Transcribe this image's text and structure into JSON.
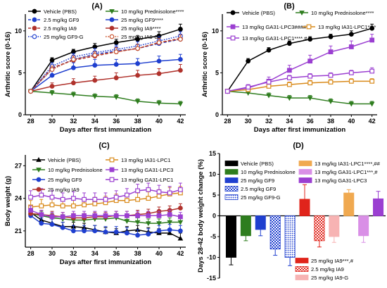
{
  "chart_data": [
    {
      "panel": "(A)",
      "type": "line",
      "xlabel": "Days after first immunization",
      "ylabel": "Arthritic score (0-16)",
      "xlim": [
        27.5,
        42.5
      ],
      "ylim": [
        0,
        12
      ],
      "xticks": [
        28,
        30,
        32,
        34,
        36,
        38,
        40,
        42
      ],
      "yticks": [
        0,
        5,
        10
      ],
      "grid": false,
      "legend_position": "top",
      "x": [
        28,
        30,
        32,
        34,
        36,
        38,
        40,
        42
      ],
      "series": [
        {
          "name": "Vehicle (PBS)",
          "color": "#000000",
          "marker": "circle",
          "fill": "filled",
          "dash": "solid",
          "values": [
            2.8,
            6.5,
            7.5,
            8.1,
            8.6,
            9.0,
            9.4,
            10.2
          ],
          "errors": [
            0.2,
            0.3,
            0.3,
            0.4,
            0.4,
            0.4,
            0.5,
            0.6
          ]
        },
        {
          "name": "2.5 mg/kg GF9",
          "color": "#1f3fcf",
          "marker": "circle",
          "fill": "filled",
          "dash": "dashed",
          "values": [
            2.8,
            5.5,
            6.6,
            7.2,
            7.6,
            7.9,
            8.5,
            9.0
          ],
          "errors": [
            0.2,
            0.4,
            0.4,
            0.4,
            0.5,
            0.5,
            0.5,
            0.5
          ]
        },
        {
          "name": "2.5 mg/kg IA9",
          "color": "#b0322c",
          "marker": "circle",
          "fill": "filled",
          "dash": "dashed",
          "values": [
            2.8,
            5.6,
            6.5,
            7.0,
            7.5,
            7.9,
            8.6,
            9.1
          ],
          "errors": [
            0.2,
            0.4,
            0.4,
            0.4,
            0.5,
            0.5,
            0.5,
            0.5
          ]
        },
        {
          "name": "25 mg/kg GF9-G",
          "color": "#1f3fcf",
          "marker": "circle",
          "fill": "open",
          "dash": "dotted",
          "values": [
            2.8,
            5.8,
            6.9,
            7.4,
            7.8,
            8.2,
            8.8,
            9.4
          ],
          "errors": [
            0.2,
            0.4,
            0.4,
            0.5,
            0.5,
            0.5,
            0.5,
            0.5
          ]
        },
        {
          "name": "10 mg/kg Prednisolone****",
          "color": "#2e7d1e",
          "marker": "triangle-down",
          "fill": "filled",
          "dash": "solid",
          "values": [
            2.8,
            2.6,
            2.4,
            2.2,
            2.1,
            1.6,
            1.4,
            1.3
          ],
          "errors": [
            0.2,
            0.3,
            0.3,
            0.3,
            0.3,
            0.3,
            0.3,
            0.3
          ]
        },
        {
          "name": "25 mg/kg GF9****",
          "color": "#1f3fcf",
          "marker": "circle",
          "fill": "filled",
          "dash": "solid",
          "values": [
            2.8,
            4.7,
            5.6,
            5.9,
            6.0,
            6.1,
            6.4,
            6.6
          ],
          "errors": [
            0.2,
            0.5,
            0.6,
            0.7,
            0.6,
            0.6,
            0.6,
            0.6
          ]
        },
        {
          "name": "25 mg/kg IA9****",
          "color": "#b0322c",
          "marker": "circle",
          "fill": "filled",
          "dash": "solid",
          "values": [
            2.8,
            3.4,
            3.8,
            4.1,
            4.4,
            4.7,
            4.9,
            5.3
          ],
          "errors": [
            0.2,
            0.4,
            0.5,
            0.5,
            0.6,
            0.6,
            0.6,
            0.7
          ]
        },
        {
          "name": "25 mg/kg IA9-G",
          "color": "#c9502a",
          "marker": "circle",
          "fill": "open",
          "dash": "dotted",
          "values": [
            2.8,
            5.4,
            6.6,
            7.1,
            7.5,
            7.9,
            8.6,
            9.0
          ],
          "errors": [
            0.2,
            0.4,
            0.4,
            0.4,
            0.5,
            0.5,
            0.5,
            0.5
          ]
        }
      ]
    },
    {
      "panel": "(B)",
      "type": "line",
      "xlabel": "Days after first immunization",
      "ylabel": "Arthritic score (0-16)",
      "xlim": [
        27.5,
        42.5
      ],
      "ylim": [
        0,
        12
      ],
      "xticks": [
        28,
        30,
        32,
        34,
        36,
        38,
        40,
        42
      ],
      "yticks": [
        0,
        5,
        10
      ],
      "grid": false,
      "legend_position": "top",
      "x": [
        28,
        30,
        32,
        34,
        36,
        38,
        40,
        42
      ],
      "series": [
        {
          "name": "Vehicle (PBS)",
          "color": "#000000",
          "marker": "circle",
          "fill": "filled",
          "dash": "solid",
          "values": [
            2.8,
            6.4,
            7.7,
            8.5,
            9.0,
            9.3,
            9.6,
            10.3
          ],
          "errors": [
            0.2,
            0.3,
            0.3,
            0.3,
            0.3,
            0.3,
            0.4,
            0.5
          ]
        },
        {
          "name": "10 mg/kg Prednisolone****",
          "color": "#2e7d1e",
          "marker": "triangle-down",
          "fill": "filled",
          "dash": "solid",
          "values": [
            2.8,
            2.6,
            2.3,
            2.0,
            2.0,
            1.6,
            1.3,
            1.3
          ],
          "errors": [
            0.2,
            0.3,
            0.3,
            0.3,
            0.3,
            0.3,
            0.3,
            0.3
          ]
        },
        {
          "name": "13 mg/kg GA31-LPC3####",
          "color": "#9b3fd1",
          "marker": "square",
          "fill": "filled",
          "dash": "solid",
          "values": [
            2.8,
            3.2,
            4.0,
            5.3,
            6.4,
            7.5,
            8.1,
            8.9
          ],
          "errors": [
            0.2,
            0.3,
            0.5,
            0.6,
            0.7,
            0.7,
            0.7,
            0.7
          ]
        },
        {
          "name": "13 mg/kg IA31-LPC1****",
          "color": "#d98a1a",
          "marker": "square",
          "fill": "open",
          "dash": "solid",
          "values": [
            2.8,
            3.0,
            3.4,
            3.6,
            3.8,
            3.9,
            4.0,
            4.0
          ],
          "errors": [
            0.2,
            0.3,
            0.3,
            0.3,
            0.3,
            0.3,
            0.3,
            0.3
          ]
        },
        {
          "name": "13 mg/kg GA31-LPC1****,#",
          "color": "#9b3fd1",
          "marker": "square",
          "fill": "open",
          "dash": "solid",
          "values": [
            2.8,
            3.3,
            3.9,
            4.4,
            4.6,
            4.7,
            5.0,
            5.2
          ],
          "errors": [
            0.2,
            0.3,
            0.3,
            0.3,
            0.3,
            0.3,
            0.3,
            0.4
          ]
        }
      ]
    },
    {
      "panel": "(C)",
      "type": "line",
      "xlabel": "Days after first immunization",
      "ylabel": "Body weight (g)",
      "xlim": [
        27.5,
        42.5
      ],
      "ylim": [
        19.5,
        28
      ],
      "xticks": [
        28,
        30,
        32,
        34,
        36,
        38,
        40,
        42
      ],
      "yticks": [
        21,
        24,
        27
      ],
      "grid": false,
      "legend_position": "top",
      "x": [
        28,
        29,
        30,
        31,
        32,
        33,
        34,
        35,
        36,
        37,
        38,
        39,
        40,
        41,
        42
      ],
      "series": [
        {
          "name": "Vehicle (PBS)",
          "color": "#000000",
          "marker": "triangle-up",
          "fill": "filled",
          "dash": "solid",
          "values": [
            22.7,
            22.0,
            21.7,
            21.4,
            21.4,
            21.3,
            21.1,
            20.9,
            20.8,
            21.0,
            21.1,
            20.9,
            20.8,
            20.8,
            20.3
          ],
          "errors": [
            0.4,
            0.4,
            0.4,
            0.4,
            0.4,
            0.4,
            0.4,
            0.4,
            0.4,
            0.4,
            0.4,
            0.4,
            0.4,
            0.4,
            0.5
          ]
        },
        {
          "name": "10 mg/kg Prednisolone",
          "color": "#2e7d1e",
          "marker": "triangle-down",
          "fill": "filled",
          "dash": "solid",
          "values": [
            22.6,
            22.4,
            22.2,
            22.1,
            22.0,
            22.0,
            22.1,
            22.1,
            22.2,
            21.9,
            21.8,
            21.7,
            21.7,
            21.8,
            21.8
          ],
          "errors": [
            0.4,
            0.4,
            0.4,
            0.4,
            0.4,
            0.4,
            0.4,
            0.4,
            0.4,
            0.4,
            0.4,
            0.4,
            0.4,
            0.4,
            0.4
          ]
        },
        {
          "name": "25 mg/kg GF9",
          "color": "#1f3fcf",
          "marker": "circle",
          "fill": "filled",
          "dash": "solid",
          "values": [
            22.4,
            21.7,
            21.6,
            21.3,
            21.0,
            21.0,
            21.0,
            20.9,
            20.9,
            20.8,
            20.6,
            20.7,
            21.0,
            21.1,
            21.0
          ],
          "errors": [
            0.5,
            0.5,
            0.5,
            0.5,
            0.5,
            0.5,
            0.5,
            0.5,
            0.5,
            0.5,
            0.5,
            0.5,
            0.5,
            0.5,
            0.5
          ]
        },
        {
          "name": "25 mg/kg IA9",
          "color": "#b0322c",
          "marker": "circle",
          "fill": "filled",
          "dash": "solid",
          "values": [
            22.6,
            22.5,
            22.4,
            22.3,
            22.2,
            22.2,
            22.3,
            22.3,
            22.4,
            22.4,
            22.5,
            22.6,
            22.8,
            22.9,
            23.1
          ],
          "errors": [
            0.4,
            0.4,
            0.4,
            0.4,
            0.4,
            0.4,
            0.4,
            0.4,
            0.4,
            0.4,
            0.4,
            0.4,
            0.4,
            0.4,
            0.4
          ]
        },
        {
          "name": "13 mg/kg IA31-LPC1",
          "color": "#d98a1a",
          "marker": "square",
          "fill": "open",
          "dash": "solid",
          "values": [
            23.2,
            23.3,
            23.4,
            23.3,
            23.3,
            23.4,
            23.5,
            23.6,
            23.8,
            23.8,
            23.9,
            24.0,
            24.2,
            24.4,
            24.5
          ],
          "errors": [
            0.6,
            0.6,
            0.6,
            0.6,
            0.6,
            0.6,
            0.6,
            0.6,
            0.6,
            0.6,
            0.6,
            0.6,
            0.6,
            0.6,
            0.6
          ]
        },
        {
          "name": "13 mg/kg GA31-LPC3",
          "color": "#9b3fd1",
          "marker": "square",
          "fill": "filled",
          "dash": "solid",
          "values": [
            22.9,
            22.5,
            22.3,
            22.3,
            22.4,
            22.4,
            22.4,
            22.4,
            22.4,
            22.4,
            22.4,
            22.4,
            22.4,
            22.5,
            22.3
          ],
          "errors": [
            0.4,
            0.4,
            0.4,
            0.4,
            0.4,
            0.4,
            0.4,
            0.4,
            0.4,
            0.4,
            0.4,
            0.4,
            0.4,
            0.4,
            0.4
          ]
        },
        {
          "name": "13 mg/kg GA31-LPC1",
          "color": "#9b3fd1",
          "marker": "square",
          "fill": "open",
          "dash": "solid",
          "values": [
            24.1,
            24.3,
            24.1,
            23.9,
            24.0,
            23.9,
            23.9,
            23.9,
            24.1,
            24.3,
            24.7,
            24.8,
            24.6,
            24.5,
            24.8
          ],
          "errors": [
            0.6,
            0.6,
            0.6,
            0.6,
            0.6,
            0.6,
            0.6,
            0.6,
            0.6,
            0.6,
            0.6,
            0.6,
            0.6,
            0.6,
            0.6
          ]
        }
      ]
    },
    {
      "panel": "(D)",
      "type": "bar",
      "ylabel": "Days 28-42 body weight change (%)",
      "ylim": [
        -15,
        15
      ],
      "yticks": [
        -15,
        -10,
        -5,
        0,
        5,
        10,
        15
      ],
      "grid": false,
      "legend_position": "top and bottom",
      "categories": [
        "Vehicle (PBS)",
        "10 mg/kg Prednisolone",
        "25 mg/kg GF9",
        "2.5 mg/kg GF9",
        "25 mg/kg GF9-G",
        "25 mg/kg IA9***,#",
        "2.5 mg/kg IA9",
        "25 mg/kg IA9-G",
        "13 mg/kg IA31-LPC1****,##",
        "13 mg/kg GA31-LPC1***,#",
        "13 mg/kg GA31-LPC3"
      ],
      "values": [
        -10.0,
        -4.8,
        -3.3,
        -8.0,
        -10.0,
        4.0,
        -6.0,
        -5.0,
        5.5,
        -4.8,
        4.1
      ],
      "errors": [
        1.8,
        1.2,
        1.5,
        1.5,
        2.0,
        3.5,
        1.5,
        1.4,
        0.8,
        1.6,
        1.8
      ],
      "colors": [
        "#000000",
        "#2e7d1e",
        "#1f3fcf",
        "#1f3fcf",
        "#1f3fcf",
        "#e0241b",
        "#e0241b",
        "#f7b3b3",
        "#f0a950",
        "#d98fe6",
        "#9b3fd1"
      ],
      "patterns": [
        "solid",
        "solid",
        "solid",
        "checker",
        "dots",
        "solid",
        "checker",
        "solid",
        "solid",
        "solid",
        "solid"
      ]
    }
  ]
}
